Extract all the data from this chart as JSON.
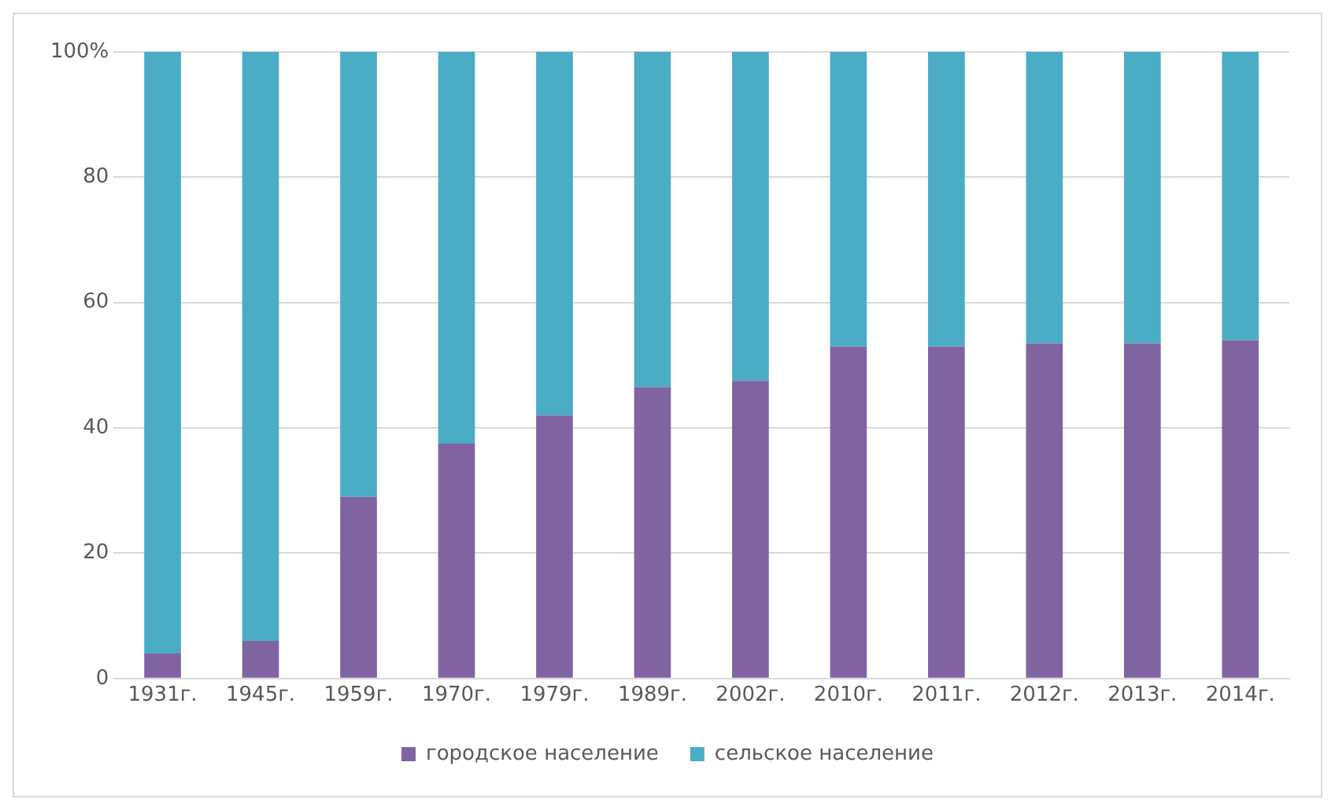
{
  "chart_data": {
    "type": "bar",
    "stacked": true,
    "categories": [
      "1931г.",
      "1945г.",
      "1959г.",
      "1970г.",
      "1979г.",
      "1989г.",
      "2002г.",
      "2010г.",
      "2011г.",
      "2012г.",
      "2013г.",
      "2014г."
    ],
    "series": [
      {
        "name": "городское население",
        "color": "#8064a2",
        "values": [
          4,
          6,
          29,
          37.5,
          42,
          46.5,
          47.5,
          53,
          53,
          53.5,
          53.5,
          54
        ]
      },
      {
        "name": "сельское население",
        "color": "#4bacc6",
        "values": [
          96,
          94,
          71,
          62.5,
          58,
          53.5,
          52.5,
          47,
          47,
          46.5,
          46.5,
          46
        ]
      }
    ],
    "ylim": [
      0,
      100
    ],
    "yticks": [
      0,
      20,
      40,
      60,
      80,
      {
        "value": 100,
        "label": "100%"
      }
    ],
    "grid": "y",
    "legend": "bottom"
  }
}
